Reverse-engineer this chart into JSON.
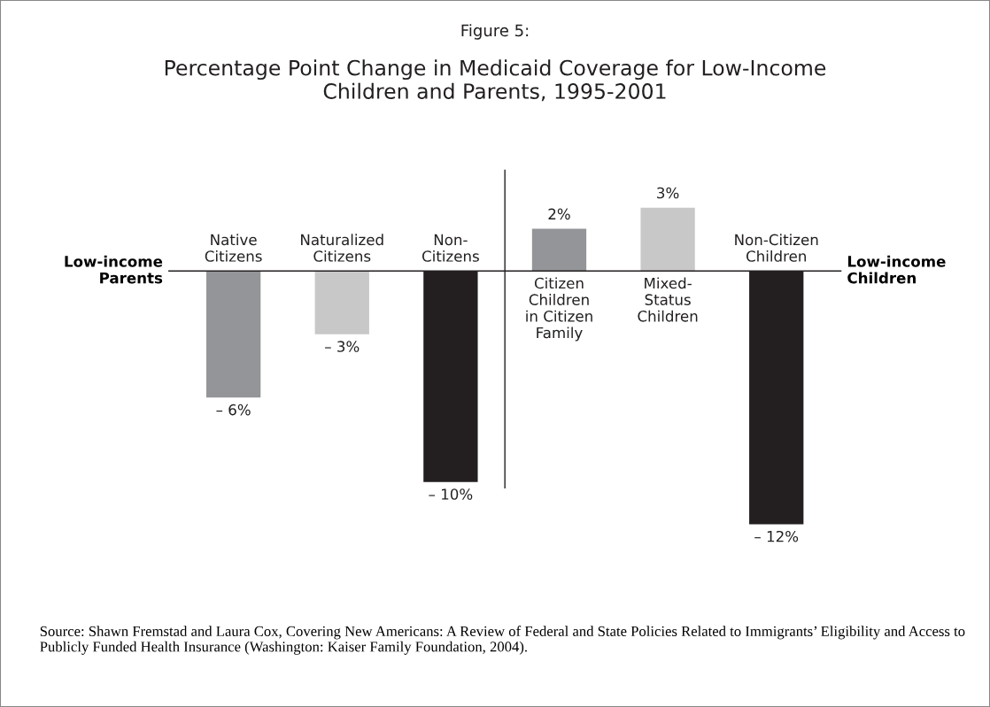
{
  "chart_data": {
    "type": "bar",
    "title": "Figure 5:",
    "subtitle": "Percentage Point Change in Medicaid Coverage for Low-Income\nChildren and Parents, 1995-2001",
    "categories": [
      "Native\nCitizens",
      "Naturalized\nCitizens",
      "Non-\nCitizens",
      "Citizen\nChildren\nin Citizen\nFamily",
      "Mixed-\nStatus\nChildren",
      "Non-Citizen\nChildren"
    ],
    "values": [
      -6,
      -3,
      -10,
      2,
      3,
      -12
    ],
    "colors": [
      "#939598",
      "#c8c8c8",
      "#231f20",
      "#939598",
      "#c8c8c8",
      "#231f20"
    ],
    "value_labels": [
      "– 6%",
      "– 3%",
      "– 10%",
      "2%",
      "3%",
      "– 12%"
    ],
    "tick_labels": false,
    "annotations": [
      "Low-income\nParents",
      "Low-income\nChildren",
      "Source: Shawn Fremstad and Laura Cox, Covering New Americans: A Review of Federal and State Policies Related to Immigrants’ Eligibility and Access to Publicly Funded Health Insurance (Washington: Kaiser Family Foundation, 2004)."
    ]
  }
}
